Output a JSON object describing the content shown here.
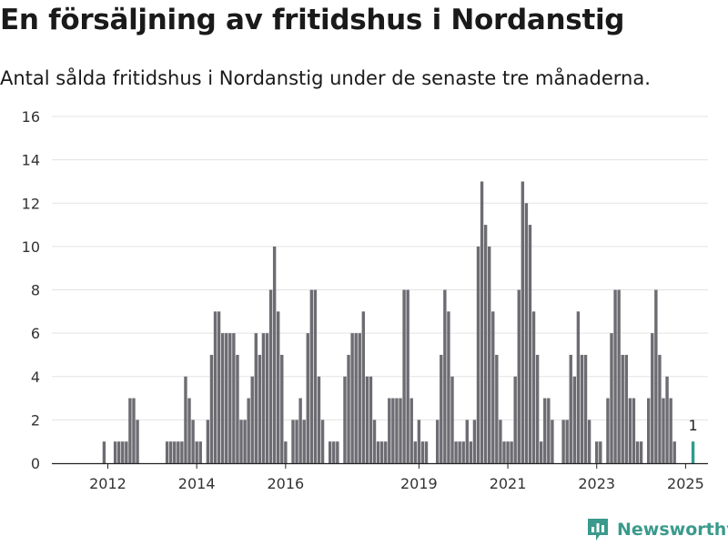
{
  "title": "En försäljning av fritidshus i Nordanstig",
  "subtitle": "Antal sålda fritidshus i Nordanstig under de senaste tre månaderna.",
  "brand": {
    "name": "Newsworthy"
  },
  "colors": {
    "bar": "#6d6c72",
    "highlight": "#2a9d8f",
    "grid": "#e3e3e3",
    "text": "#1a1a1a",
    "brand": "#3a9a8c"
  },
  "chart_data": {
    "type": "bar",
    "title": "",
    "xlabel": "",
    "ylabel": "",
    "ylim": [
      0,
      16
    ],
    "yticks": [
      0,
      2,
      4,
      6,
      8,
      10,
      12,
      14,
      16
    ],
    "xtick_labels": [
      "2012",
      "2014",
      "2016",
      "2019",
      "2021",
      "2023",
      "2025"
    ],
    "grid": true,
    "start_month": "2011-06",
    "highlight_label": "1",
    "values": [
      0,
      0,
      0,
      0,
      0,
      0,
      1,
      0,
      0,
      1,
      1,
      1,
      1,
      3,
      3,
      2,
      0,
      0,
      0,
      0,
      0,
      0,
      0,
      1,
      1,
      1,
      1,
      1,
      4,
      3,
      2,
      1,
      1,
      0,
      2,
      5,
      7,
      7,
      6,
      6,
      6,
      6,
      5,
      2,
      2,
      3,
      4,
      6,
      5,
      6,
      6,
      8,
      10,
      7,
      5,
      1,
      0,
      2,
      2,
      3,
      2,
      6,
      8,
      8,
      4,
      2,
      0,
      1,
      1,
      1,
      0,
      4,
      5,
      6,
      6,
      6,
      7,
      4,
      4,
      2,
      1,
      1,
      1,
      3,
      3,
      3,
      3,
      8,
      8,
      3,
      1,
      2,
      1,
      1,
      0,
      0,
      2,
      5,
      8,
      7,
      4,
      1,
      1,
      1,
      2,
      1,
      2,
      10,
      13,
      11,
      10,
      7,
      5,
      2,
      1,
      1,
      1,
      4,
      8,
      13,
      12,
      11,
      7,
      5,
      1,
      3,
      3,
      2,
      0,
      0,
      2,
      2,
      5,
      4,
      7,
      5,
      5,
      2,
      0,
      1,
      1,
      0,
      3,
      6,
      8,
      8,
      5,
      5,
      3,
      3,
      1,
      1,
      0,
      3,
      6,
      8,
      5,
      3,
      4,
      3,
      1,
      0,
      0,
      0,
      0,
      1
    ]
  }
}
